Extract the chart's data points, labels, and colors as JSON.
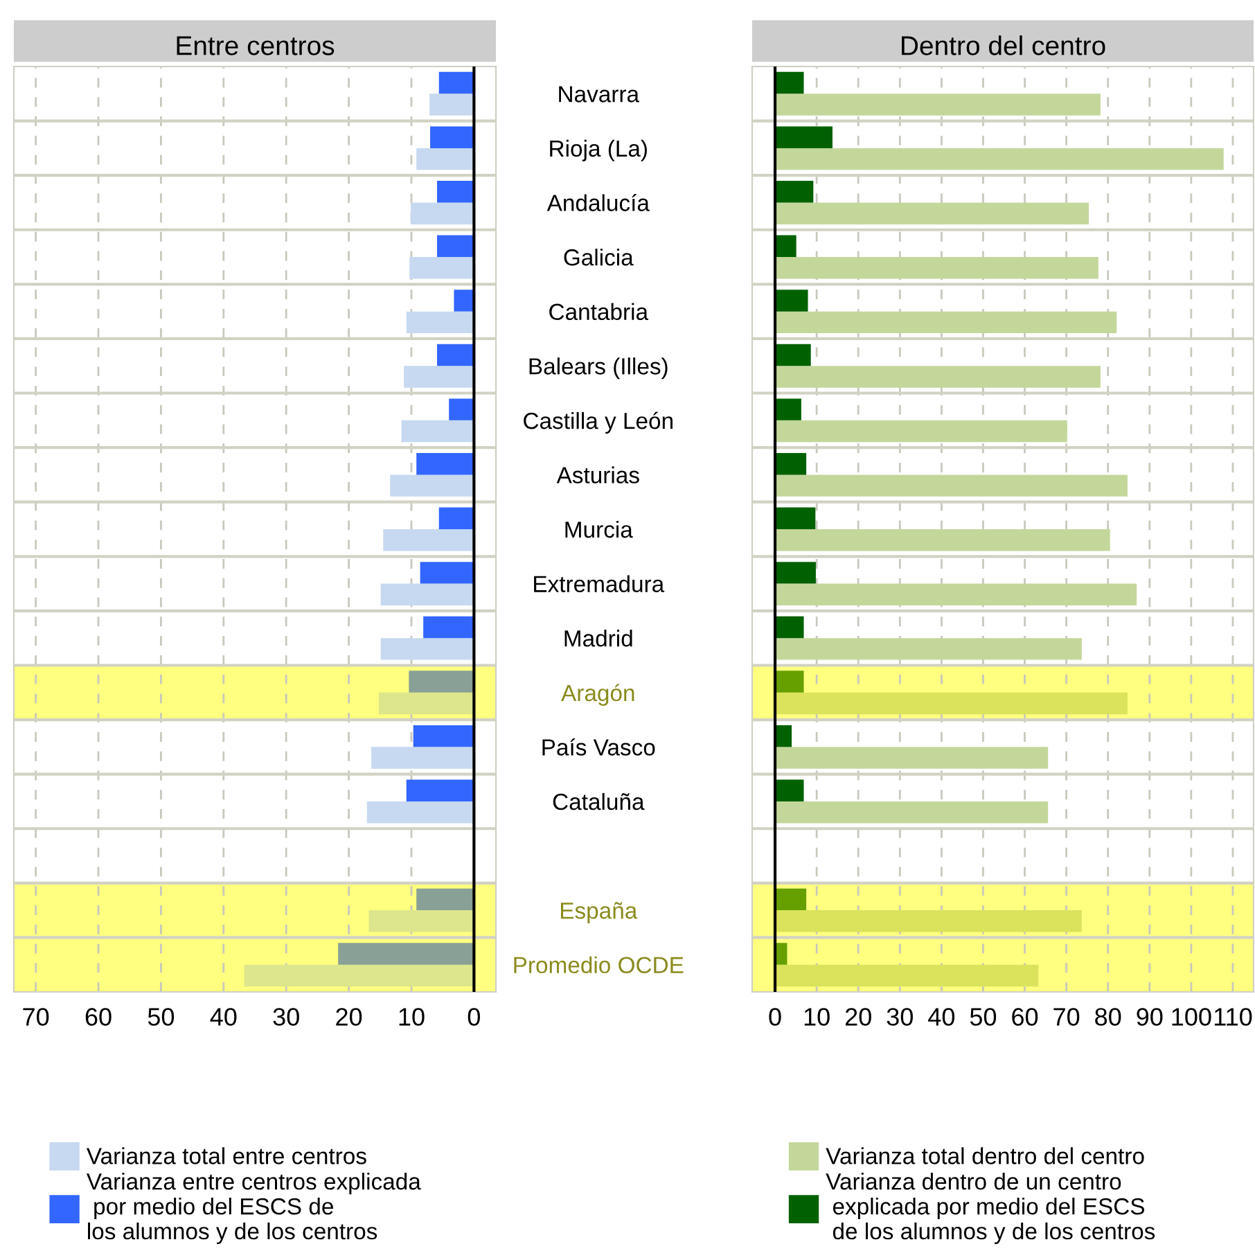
{
  "chart_data": [
    {
      "type": "bar",
      "orientation": "horizontal",
      "title": "Entre centros",
      "categories": [
        "Navarra",
        "Rioja (La)",
        "Andalucía",
        "Galicia",
        "Cantabria",
        "Balears (Illes)",
        "Castilla y León",
        "Asturias",
        "Murcia",
        "Extremadura",
        "Madrid",
        "Aragón",
        "País Vasco",
        "Cataluña",
        null,
        "España",
        "Promedio OCDE"
      ],
      "series": [
        {
          "name": "Varianza total entre centros",
          "color": "#c6d9f0",
          "colors": [
            "#c6d9f0",
            "#c6d9f0",
            "#c6d9f0",
            "#c6d9f0",
            "#c6d9f0",
            "#c6d9f0",
            "#c6d9f0",
            "#c6d9f0",
            "#c6d9f0",
            "#c6d9f0",
            "#c6d9f0",
            "#dde68c",
            "#c6d9f0",
            "#c6d9f0",
            null,
            "#dde68c",
            "#dde68c"
          ],
          "values": [
            7.1,
            9.2,
            10.1,
            10.3,
            10.8,
            11.2,
            11.6,
            13.4,
            14.5,
            14.9,
            14.9,
            15.2,
            16.4,
            17.1,
            null,
            16.8,
            36.7
          ]
        },
        {
          "name": "Varianza entre centros explicada\n por medio del ESCS de\nlos alumnos y de los centros",
          "color": "#3366ff",
          "colors": [
            "#3366ff",
            "#3366ff",
            "#3366ff",
            "#3366ff",
            "#3366ff",
            "#3366ff",
            "#3366ff",
            "#3366ff",
            "#3366ff",
            "#3366ff",
            "#3366ff",
            "#88a096",
            "#3366ff",
            "#3366ff",
            null,
            "#88a096",
            "#88a096"
          ],
          "values": [
            5.6,
            7.0,
            5.9,
            5.9,
            3.2,
            5.9,
            4.0,
            9.2,
            5.6,
            8.6,
            8.1,
            10.4,
            9.7,
            10.8,
            null,
            9.2,
            21.7
          ]
        }
      ],
      "xlim": [
        73.5,
        -3.5
      ],
      "xticks": [
        70,
        60,
        50,
        40,
        30,
        20,
        10,
        0
      ],
      "grid": true,
      "legend": "bottom",
      "tick_labels": "x",
      "ref_lines": [
        {
          "axis": "x",
          "value": 0,
          "color": "#000000"
        }
      ],
      "bands": [
        {
          "axis": "y",
          "from": "Aragón",
          "to": "Aragón",
          "color": "#ffff80"
        },
        {
          "axis": "y",
          "from": "España",
          "to": "Promedio OCDE",
          "color": "#ffff80"
        }
      ]
    },
    {
      "type": "bar",
      "orientation": "horizontal",
      "title": "Dentro del centro",
      "categories": [
        "Navarra",
        "Rioja (La)",
        "Andalucía",
        "Galicia",
        "Cantabria",
        "Balears (Illes)",
        "Castilla y León",
        "Asturias",
        "Murcia",
        "Extremadura",
        "Madrid",
        "Aragón",
        "País Vasco",
        "Cataluña",
        null,
        "España",
        "Promedio OCDE"
      ],
      "series": [
        {
          "name": "Varianza total dentro del centro",
          "color": "#c4d79b",
          "colors": [
            "#c4d79b",
            "#c4d79b",
            "#c4d79b",
            "#c4d79b",
            "#c4d79b",
            "#c4d79b",
            "#c4d79b",
            "#c4d79b",
            "#c4d79b",
            "#c4d79b",
            "#c4d79b",
            "#dbe35c",
            "#c4d79b",
            "#c4d79b",
            null,
            "#dbe35c",
            "#dbe35c"
          ],
          "values": [
            78.2,
            107.8,
            75.4,
            77.7,
            82.1,
            78.2,
            70.2,
            84.7,
            80.5,
            86.9,
            73.7,
            84.7,
            65.6,
            65.6,
            null,
            73.7,
            63.3
          ]
        },
        {
          "name": "Varianza dentro de un centro\n explicada por medio del ESCS\n de los alumnos y de los centros",
          "color": "#006100",
          "colors": [
            "#006100",
            "#006100",
            "#006100",
            "#006100",
            "#006100",
            "#006100",
            "#006100",
            "#006100",
            "#006100",
            "#006100",
            "#006100",
            "#66a000",
            "#006100",
            "#006100",
            null,
            "#66a000",
            "#66a000"
          ],
          "values": [
            6.9,
            13.8,
            9.2,
            5.1,
            7.9,
            8.6,
            6.3,
            7.5,
            9.7,
            9.8,
            6.9,
            6.9,
            4.0,
            6.9,
            null,
            7.5,
            2.9
          ]
        }
      ],
      "xlim": [
        -5.5,
        115
      ],
      "xticks": [
        0,
        10,
        20,
        30,
        40,
        50,
        60,
        70,
        80,
        90,
        100,
        110
      ],
      "grid": true,
      "legend": "bottom",
      "ref_lines": [
        {
          "axis": "x",
          "value": 0,
          "color": "#000000"
        }
      ],
      "bands": [
        {
          "axis": "y",
          "from": "Aragón",
          "to": "Aragón",
          "color": "#ffff80"
        },
        {
          "axis": "y",
          "from": "España",
          "to": "Promedio OCDE",
          "color": "#ffff80"
        }
      ]
    }
  ]
}
